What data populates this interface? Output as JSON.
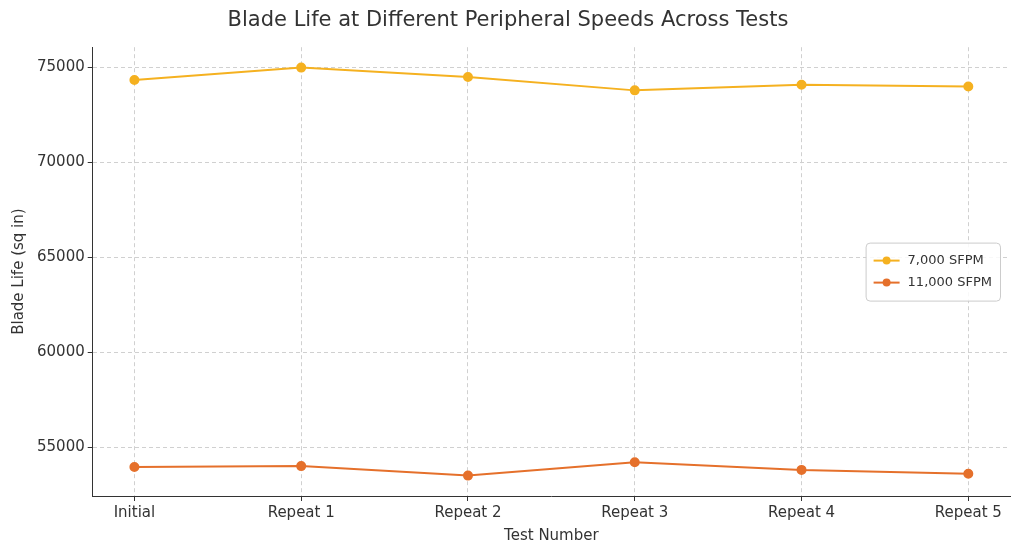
{
  "chart_data": {
    "type": "line",
    "title": "Blade Life at Different Peripheral Speeds Across Tests",
    "x_label": "Test Number",
    "y_label": "Blade Life (sq in)",
    "categories": [
      "Initial",
      "Repeat 1",
      "Repeat 2",
      "Repeat 3",
      "Repeat 4",
      "Repeat 5"
    ],
    "series": [
      {
        "name": "7,000 SFPM",
        "color": "#f5b120",
        "marker": "circle",
        "line_style": "solid",
        "values": [
          74350,
          75000,
          74500,
          73800,
          74100,
          74000
        ]
      },
      {
        "name": "11,000 SFPM",
        "color": "#e5702b",
        "marker": "circle",
        "line_style": "solid",
        "values": [
          53950,
          54000,
          53500,
          54200,
          53800,
          53600
        ]
      }
    ],
    "ylim": [
      52425,
      76075
    ],
    "yticks": [
      55000,
      60000,
      65000,
      70000,
      75000
    ],
    "grid": true,
    "legend": "right"
  }
}
